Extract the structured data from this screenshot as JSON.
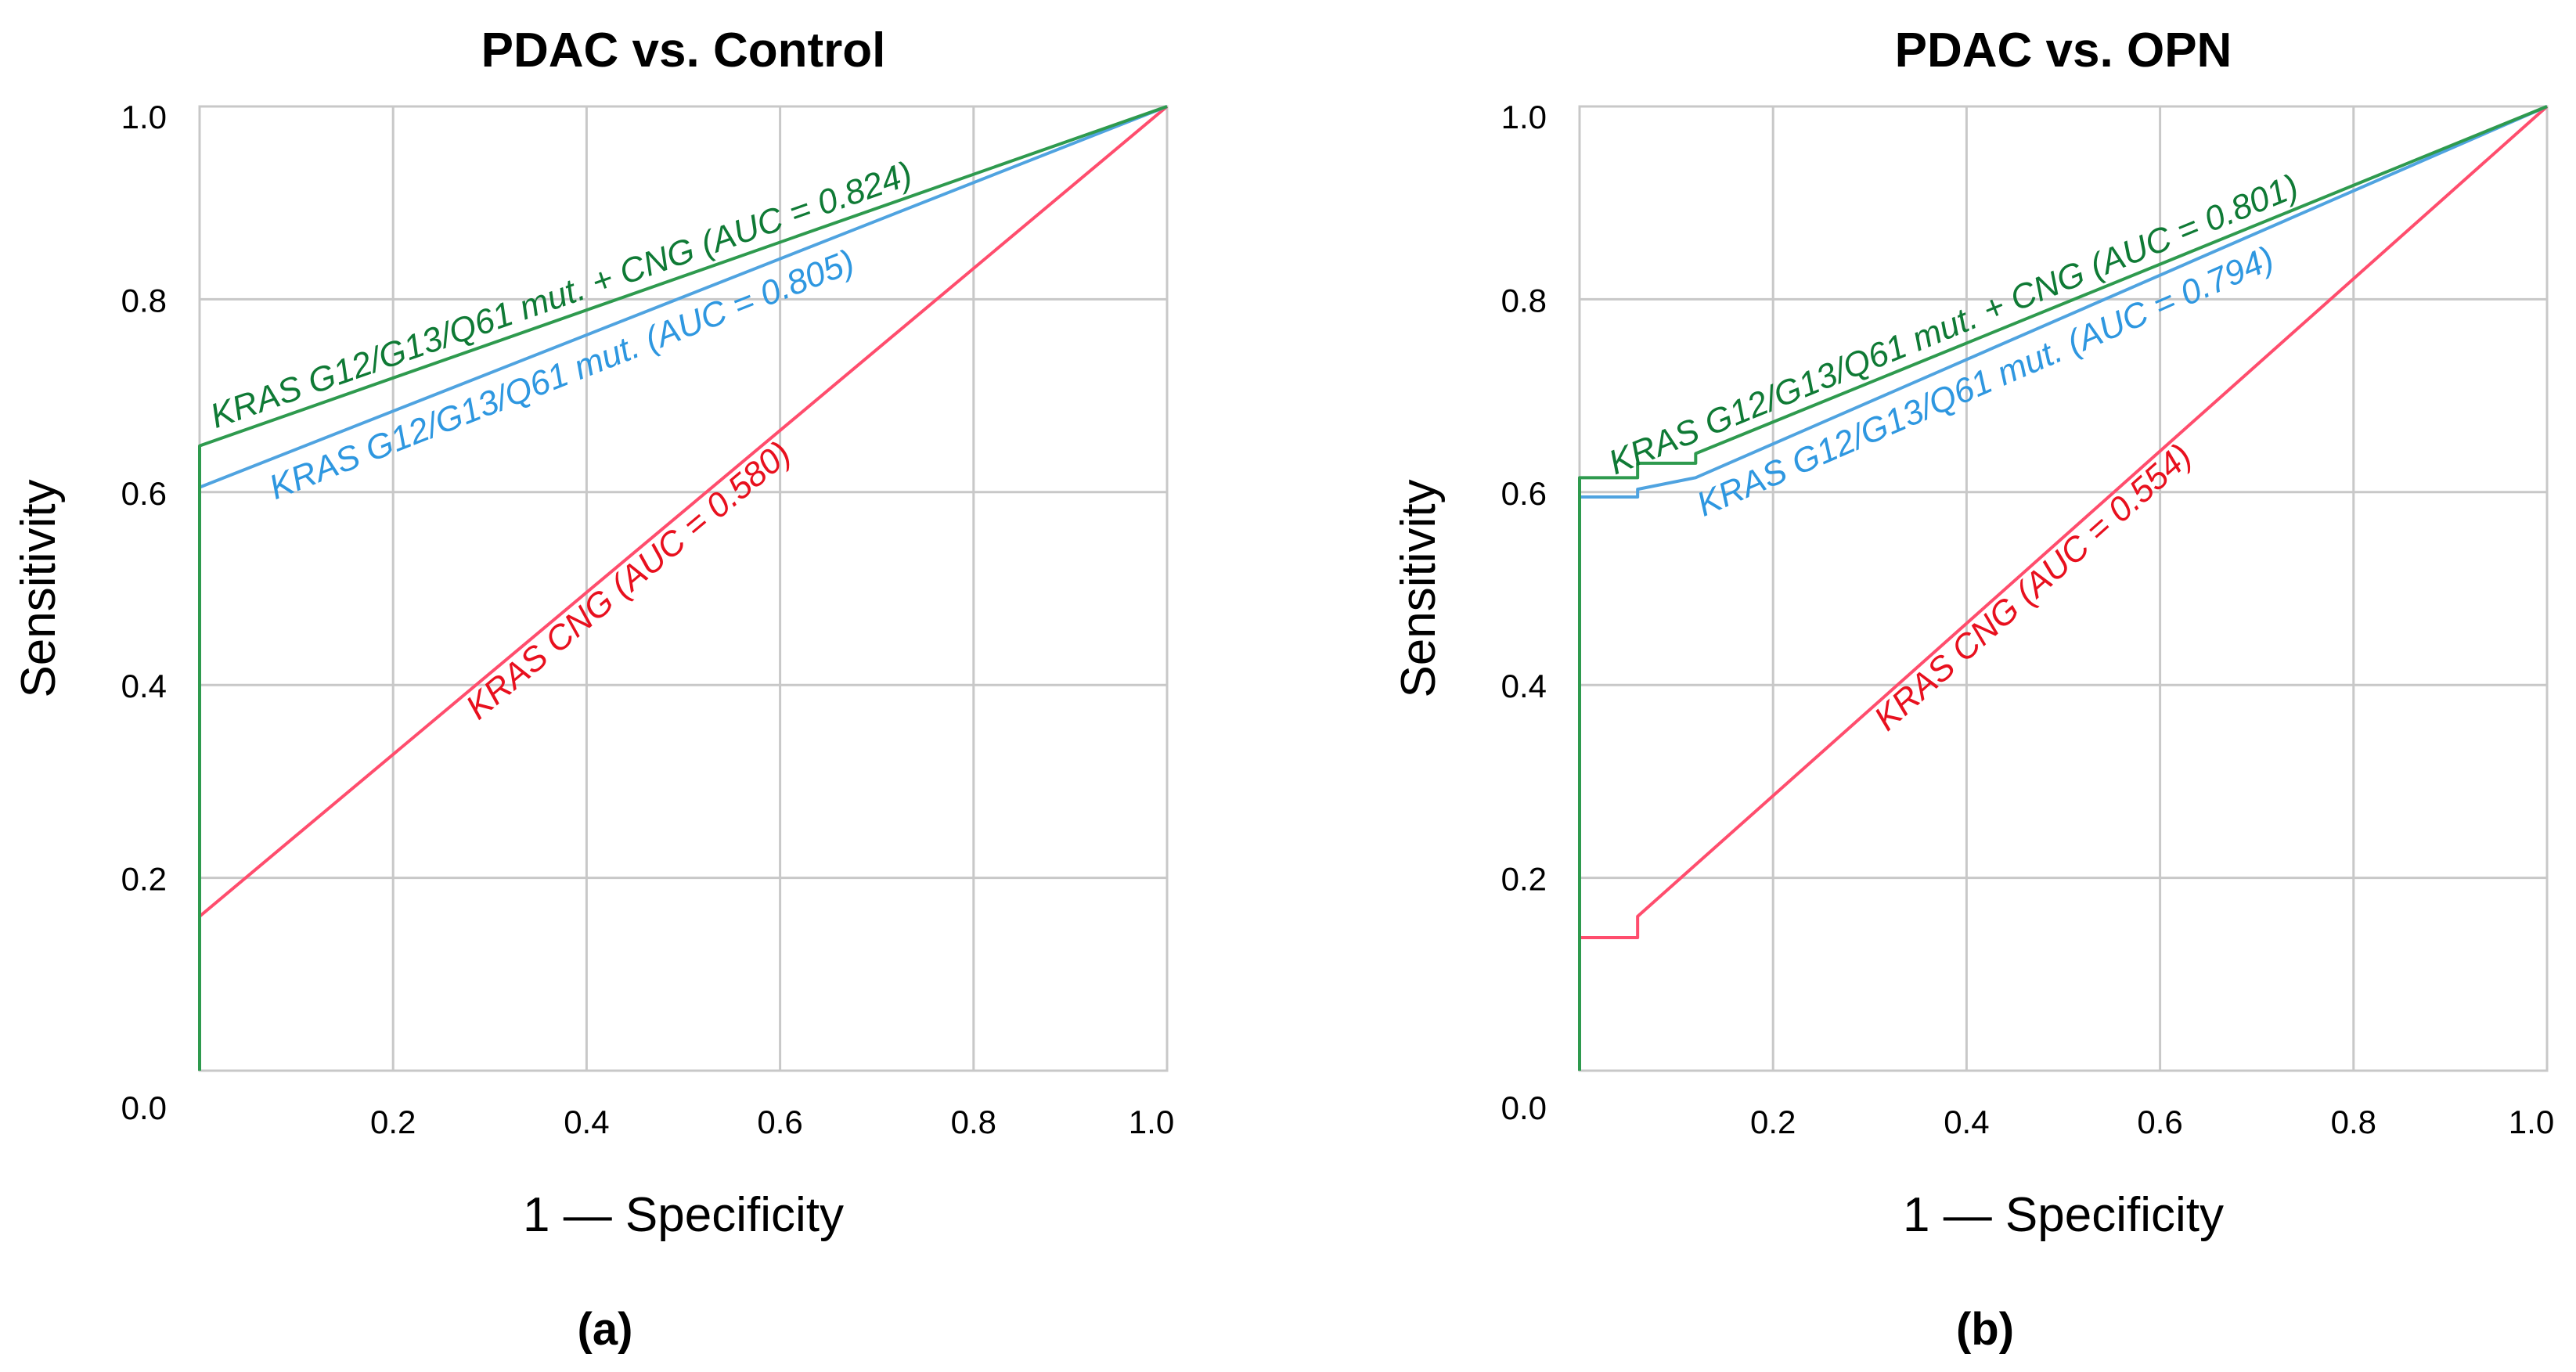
{
  "chart_data": [
    {
      "type": "line",
      "id": "a",
      "title": "PDAC vs. Control",
      "xlabel": "1 — Specificity",
      "ylabel": "Sensitivity",
      "panel_label": "(a)",
      "xlim": [
        0,
        1
      ],
      "ylim": [
        0,
        1
      ],
      "x_ticks": [
        "0.2",
        "0.4",
        "0.6",
        "0.8",
        "1.0"
      ],
      "y_ticks": [
        "0.0",
        "0.2",
        "0.4",
        "0.6",
        "0.8",
        "1.0"
      ],
      "grid": true,
      "series": [
        {
          "name": "KRAS CNG",
          "label_prefix": "KRAS",
          "label_suffix": " CNG (AUC = 0.580)",
          "auc": 0.58,
          "color": "#ff4d6d",
          "label_color": "#e8101e",
          "x": [
            0,
            0,
            1
          ],
          "y": [
            0,
            0.16,
            1
          ]
        },
        {
          "name": "KRAS G12/G13/Q61 mut.",
          "label_prefix": "KRAS",
          "label_suffix": " G12/G13/Q61 mut. (AUC = 0.805)",
          "auc": 0.805,
          "color": "#4fa3e0",
          "label_color": "#2e97e0",
          "x": [
            0,
            0,
            1
          ],
          "y": [
            0,
            0.605,
            1
          ]
        },
        {
          "name": "KRAS G12/G13/Q61 mut. + CNG",
          "label_prefix": "KRAS",
          "label_suffix": " G12/G13/Q61 mut. + CNG (AUC = 0.824)",
          "auc": 0.824,
          "color": "#2e9a4e",
          "label_color": "#0f7a35",
          "x": [
            0,
            0,
            1
          ],
          "y": [
            0,
            0.648,
            1
          ]
        }
      ]
    },
    {
      "type": "line",
      "id": "b",
      "title": "PDAC vs. OPN",
      "xlabel": "1 — Specificity",
      "ylabel": "Sensitivity",
      "panel_label": "(b)",
      "xlim": [
        0,
        1
      ],
      "ylim": [
        0,
        1
      ],
      "x_ticks": [
        "0.2",
        "0.4",
        "0.6",
        "0.8",
        "1.0"
      ],
      "y_ticks": [
        "0.0",
        "0.2",
        "0.4",
        "0.6",
        "0.8",
        "1.0"
      ],
      "grid": true,
      "series": [
        {
          "name": "KRAS CNG",
          "label_prefix": "KRAS",
          "label_suffix": " CNG (AUC = 0.554)",
          "auc": 0.554,
          "color": "#ff4d6d",
          "label_color": "#e8101e",
          "x": [
            0,
            0,
            0.06,
            0.06,
            1
          ],
          "y": [
            0,
            0.138,
            0.138,
            0.16,
            1
          ]
        },
        {
          "name": "KRAS G12/G13/Q61 mut.",
          "label_prefix": "KRAS",
          "label_suffix": " G12/G13/Q61 mut. (AUC = 0.794)",
          "auc": 0.794,
          "color": "#4fa3e0",
          "label_color": "#2e97e0",
          "x": [
            0,
            0,
            0.06,
            0.06,
            0.12,
            1
          ],
          "y": [
            0,
            0.595,
            0.595,
            0.603,
            0.615,
            1
          ]
        },
        {
          "name": "KRAS G12/G13/Q61 mut. + CNG",
          "label_prefix": "KRAS",
          "label_suffix": " G12/G13/Q61 mut. + CNG (AUC = 0.801)",
          "auc": 0.801,
          "color": "#2e9a4e",
          "label_color": "#0f7a35",
          "x": [
            0,
            0,
            0.06,
            0.06,
            0.12,
            0.12,
            1
          ],
          "y": [
            0,
            0.615,
            0.615,
            0.63,
            0.63,
            0.64,
            1
          ]
        }
      ]
    }
  ]
}
